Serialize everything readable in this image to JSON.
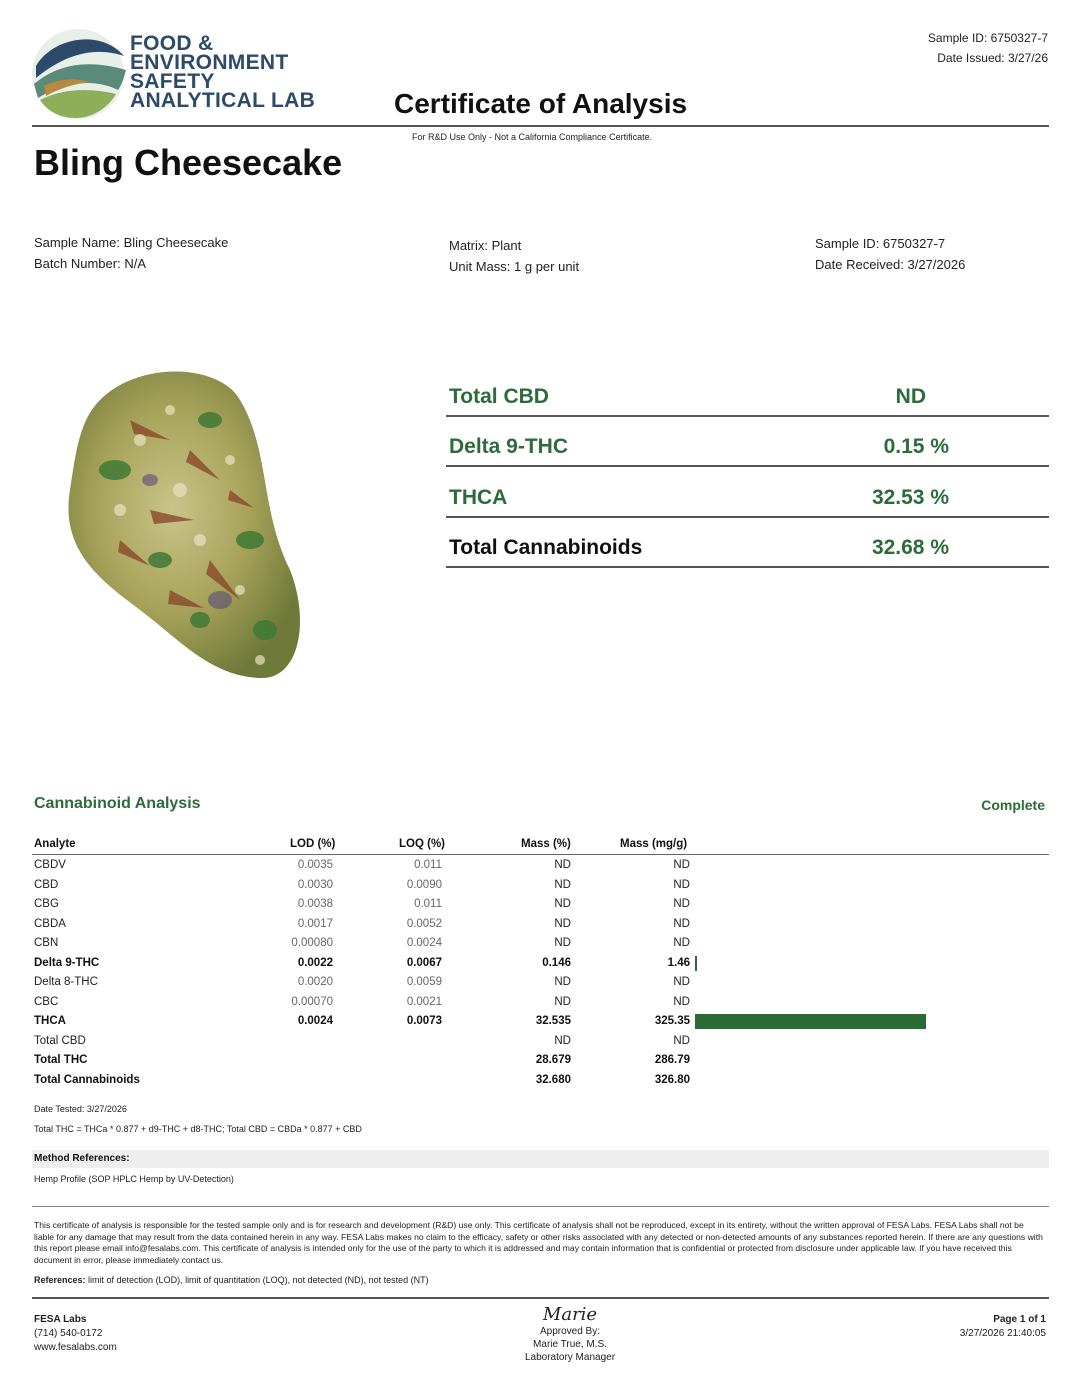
{
  "lab": {
    "name_lines": [
      "FOOD &",
      "ENVIRONMENT",
      "SAFETY",
      "ANALYTICAL LAB"
    ]
  },
  "header": {
    "sample_id": "Sample ID: 6750327-7",
    "date_issued": "Date Issued: 3/27/26",
    "title": "Certificate of Analysis",
    "note": "For R&D Use Only - Not a California Compliance Certificate."
  },
  "product_name": "Bling Cheesecake",
  "info": {
    "sample_name": "Sample Name: Bling Cheesecake",
    "batch_number": "Batch Number: N/A",
    "matrix": "Matrix: Plant",
    "unit_mass": "Unit Mass: 1 g per unit",
    "sample_id": "Sample ID: 6750327-7",
    "date_received": "Date Received: 3/27/2026"
  },
  "summary": [
    {
      "label": "Total CBD",
      "value": "ND"
    },
    {
      "label": "Delta 9-THC",
      "value": "0.15 %"
    },
    {
      "label": "THCA",
      "value": "32.53 %"
    },
    {
      "label": "Total Cannabinoids",
      "value": "32.68 %"
    }
  ],
  "analysis": {
    "title": "Cannabinoid Analysis",
    "status": "Complete",
    "columns": [
      "Analyte",
      "LOD (%)",
      "LOQ (%)",
      "Mass (%)",
      "Mass (mg/g)"
    ],
    "rows": [
      {
        "analyte": "CBDV",
        "lod": "0.0035",
        "loq": "0.011",
        "mass": "ND",
        "mg": "ND",
        "bold": false,
        "bar": 0
      },
      {
        "analyte": "CBD",
        "lod": "0.0030",
        "loq": "0.0090",
        "mass": "ND",
        "mg": "ND",
        "bold": false,
        "bar": 0
      },
      {
        "analyte": "CBG",
        "lod": "0.0038",
        "loq": "0.011",
        "mass": "ND",
        "mg": "ND",
        "bold": false,
        "bar": 0
      },
      {
        "analyte": "CBDA",
        "lod": "0.0017",
        "loq": "0.0052",
        "mass": "ND",
        "mg": "ND",
        "bold": false,
        "bar": 0
      },
      {
        "analyte": "CBN",
        "lod": "0.00080",
        "loq": "0.0024",
        "mass": "ND",
        "mg": "ND",
        "bold": false,
        "bar": 0
      },
      {
        "analyte": "Delta 9-THC",
        "lod": "0.0022",
        "loq": "0.0067",
        "mass": "0.146",
        "mg": "1.46",
        "bold": true,
        "bar": 1.46
      },
      {
        "analyte": "Delta 8-THC",
        "lod": "0.0020",
        "loq": "0.0059",
        "mass": "ND",
        "mg": "ND",
        "bold": false,
        "bar": 0
      },
      {
        "analyte": "CBC",
        "lod": "0.00070",
        "loq": "0.0021",
        "mass": "ND",
        "mg": "ND",
        "bold": false,
        "bar": 0
      },
      {
        "analyte": "THCA",
        "lod": "0.0024",
        "loq": "0.0073",
        "mass": "32.535",
        "mg": "325.35",
        "bold": true,
        "bar": 325.35
      },
      {
        "analyte": "Total CBD",
        "lod": "",
        "loq": "",
        "mass": "ND",
        "mg": "ND",
        "bold": false,
        "bar": 0
      },
      {
        "analyte": "Total THC",
        "lod": "",
        "loq": "",
        "mass": "28.679",
        "mg": "286.79",
        "bold": true,
        "bar": 0
      },
      {
        "analyte": "Total Cannabinoids",
        "lod": "",
        "loq": "",
        "mass": "32.680",
        "mg": "326.80",
        "bold": true,
        "bar": 0
      }
    ],
    "date_tested": "Date Tested: 3/27/2026",
    "formula": "Total THC = THCa * 0.877 + d9-THC + d8-THC; Total CBD = CBDa * 0.877 + CBD"
  },
  "method": {
    "header": "Method References:",
    "text": "Hemp Profile (SOP HPLC Hemp by UV-Detection)"
  },
  "disclaimer": "This certificate of analysis is responsible for the tested sample only and is for research and development (R&D) use only. This certificate of analysis shall not be reproduced, except in its entirety, without the written approval of FESA Labs. FESA Labs shall not be liable for any damage that may result from the data contained herein in any way. FESA Labs makes no claim to the efficacy, safety or other risks associated with any detected or non-detected amounts of any substances reported herein. If there are any questions with this report please email info@fesalabs.com. This certificate of analysis is intended only for the use of the party to which it is addressed and may contain information that is confidential or protected from disclosure under applicable law. If you have received this document in error, please immediately contact us.",
  "references": {
    "label": "References:",
    "text": " limit of detection (LOD), limit of quantitation (LOQ), not detected (ND), not tested (NT)"
  },
  "footer": {
    "company": "FESA Labs",
    "phone": "(714) 540-0172",
    "website": "www.fesalabs.com",
    "signature": "Marie",
    "approved_by": "Approved By:",
    "approver": "Marie True, M.S.",
    "approver_title": "Laboratory Manager",
    "page": "Page 1 of 1",
    "timestamp": "3/27/2026 21:40:05"
  },
  "colors": {
    "accent_green": "#2e6b3a",
    "bar_green": "#2a6b35",
    "logo_navy": "#2e4a6b"
  }
}
